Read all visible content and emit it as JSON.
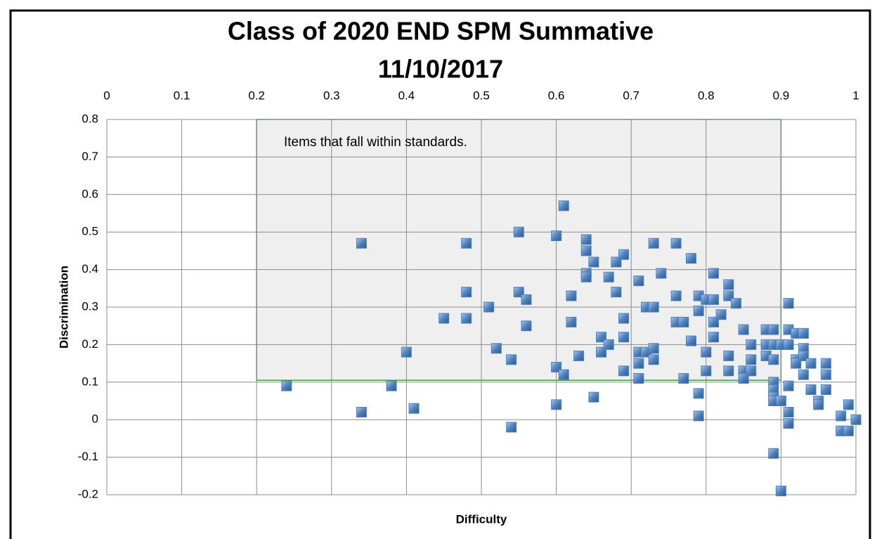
{
  "chart_data": {
    "type": "scatter",
    "title": [
      "Class of 2020 END SPM Summative",
      "11/10/2017"
    ],
    "xlabel": "Difficulty",
    "ylabel": "Discrimination",
    "annotation": "Items that fall within standards.",
    "region": {
      "xlim": [
        0.2,
        0.9
      ],
      "ylim": [
        0.105,
        0.8
      ]
    },
    "xlim": [
      0,
      1
    ],
    "ylim": [
      -0.2,
      0.8
    ],
    "xticks": [
      0,
      0.1,
      0.2,
      0.3,
      0.4,
      0.5,
      0.6,
      0.7,
      0.8,
      0.9,
      1
    ],
    "yticks": [
      -0.2,
      -0.1,
      0,
      0.1,
      0.2,
      0.3,
      0.4,
      0.5,
      0.6,
      0.7,
      0.8
    ],
    "grid": true,
    "color": "#4f81bd",
    "x": [
      0.24,
      0.34,
      0.34,
      0.38,
      0.4,
      0.41,
      0.45,
      0.48,
      0.48,
      0.48,
      0.51,
      0.52,
      0.54,
      0.54,
      0.55,
      0.55,
      0.56,
      0.56,
      0.6,
      0.6,
      0.6,
      0.61,
      0.61,
      0.62,
      0.62,
      0.63,
      0.64,
      0.64,
      0.64,
      0.64,
      0.65,
      0.65,
      0.66,
      0.66,
      0.67,
      0.67,
      0.68,
      0.68,
      0.69,
      0.69,
      0.69,
      0.69,
      0.71,
      0.71,
      0.71,
      0.71,
      0.72,
      0.72,
      0.73,
      0.73,
      0.73,
      0.73,
      0.74,
      0.76,
      0.76,
      0.76,
      0.77,
      0.77,
      0.78,
      0.78,
      0.79,
      0.79,
      0.79,
      0.79,
      0.8,
      0.8,
      0.8,
      0.81,
      0.81,
      0.81,
      0.81,
      0.82,
      0.83,
      0.83,
      0.83,
      0.83,
      0.84,
      0.85,
      0.85,
      0.85,
      0.86,
      0.86,
      0.86,
      0.88,
      0.88,
      0.88,
      0.89,
      0.89,
      0.89,
      0.89,
      0.89,
      0.89,
      0.89,
      0.89,
      0.9,
      0.9,
      0.9,
      0.91,
      0.91,
      0.91,
      0.91,
      0.91,
      0.91,
      0.92,
      0.92,
      0.92,
      0.93,
      0.93,
      0.93,
      0.93,
      0.94,
      0.94,
      0.95,
      0.95,
      0.96,
      0.96,
      0.96,
      0.98,
      0.98,
      0.99,
      0.99,
      1.0
    ],
    "values": [
      0.09,
      0.47,
      0.02,
      0.09,
      0.18,
      0.03,
      0.27,
      0.47,
      0.34,
      0.27,
      0.3,
      0.19,
      0.16,
      -0.02,
      0.5,
      0.34,
      0.32,
      0.25,
      0.49,
      0.14,
      0.04,
      0.57,
      0.12,
      0.33,
      0.26,
      0.17,
      0.48,
      0.45,
      0.39,
      0.38,
      0.42,
      0.06,
      0.22,
      0.18,
      0.38,
      0.2,
      0.42,
      0.34,
      0.44,
      0.27,
      0.22,
      0.13,
      0.37,
      0.18,
      0.15,
      0.11,
      0.3,
      0.18,
      0.47,
      0.3,
      0.19,
      0.16,
      0.39,
      0.47,
      0.33,
      0.26,
      0.26,
      0.11,
      0.43,
      0.21,
      0.33,
      0.29,
      0.07,
      0.01,
      0.32,
      0.18,
      0.13,
      0.39,
      0.32,
      0.26,
      0.22,
      0.28,
      0.36,
      0.33,
      0.17,
      0.13,
      0.31,
      0.24,
      0.13,
      0.11,
      0.2,
      0.16,
      0.13,
      0.24,
      0.2,
      0.17,
      0.24,
      0.2,
      0.16,
      0.1,
      0.08,
      0.06,
      0.05,
      -0.09,
      0.2,
      0.05,
      -0.19,
      0.31,
      0.24,
      0.2,
      0.09,
      0.02,
      -0.01,
      0.23,
      0.16,
      0.15,
      0.23,
      0.19,
      0.17,
      0.12,
      0.15,
      0.08,
      0.05,
      0.04,
      0.15,
      0.12,
      0.08,
      0.01,
      -0.03,
      0.04,
      -0.03,
      0.0
    ]
  }
}
